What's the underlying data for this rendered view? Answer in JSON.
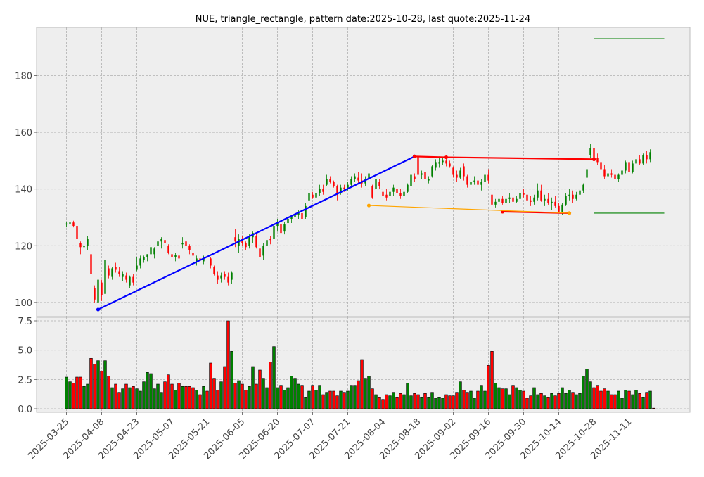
{
  "chart_data": {
    "type": "candlestick",
    "title": "NUE, triangle_rectangle, pattern date:2025-10-28, last quote:2025-11-24",
    "x_tick_labels": [
      "2025-03-25",
      "2025-04-08",
      "2025-04-23",
      "2025-05-07",
      "2025-05-21",
      "2025-06-05",
      "2025-06-20",
      "2025-07-07",
      "2025-07-21",
      "2025-08-04",
      "2025-08-18",
      "2025-09-02",
      "2025-09-16",
      "2025-09-30",
      "2025-10-14",
      "2025-10-28",
      "2025-11-11"
    ],
    "x_tick_index": [
      0,
      10,
      20,
      30,
      40,
      50,
      60,
      70,
      80,
      90,
      100,
      110,
      120,
      130,
      140,
      150,
      160
    ],
    "price_panel": {
      "yticks": [
        100,
        120,
        140,
        160,
        180
      ],
      "ylim": [
        95,
        197
      ],
      "grid": true
    },
    "volume_panel": {
      "yticks": [
        0.0,
        2.5,
        5.0,
        7.5
      ],
      "ytick_labels": [
        "0.0",
        "2.5",
        "5.0",
        "7.5"
      ],
      "ylim": [
        -0.3,
        7.8
      ],
      "grid": true
    },
    "candles": [
      [
        0,
        127.5,
        128.5,
        126.5,
        127.8
      ],
      [
        1,
        127.8,
        129.0,
        126.8,
        128.2
      ],
      [
        2,
        128.2,
        128.8,
        126.5,
        127.0
      ],
      [
        3,
        127.0,
        127.5,
        122.0,
        122.5
      ],
      [
        4,
        121.0,
        121.5,
        117.0,
        119.5
      ],
      [
        5,
        119.5,
        120.5,
        118.0,
        120.0
      ],
      [
        6,
        120.0,
        123.5,
        118.5,
        122.5
      ],
      [
        7,
        117.0,
        117.5,
        109.0,
        110.0
      ],
      [
        8,
        105.0,
        106.0,
        100.0,
        101.0
      ],
      [
        9,
        100.0,
        110.0,
        97.0,
        108.0
      ],
      [
        10,
        107.0,
        108.0,
        100.5,
        102.5
      ],
      [
        11,
        103.0,
        116.0,
        102.0,
        115.0
      ],
      [
        12,
        112.0,
        113.0,
        108.5,
        109.5
      ],
      [
        13,
        109.0,
        112.5,
        108.0,
        112.0
      ],
      [
        14,
        112.5,
        114.0,
        110.5,
        111.5
      ],
      [
        15,
        111.0,
        112.5,
        109.0,
        110.0
      ],
      [
        16,
        109.0,
        111.0,
        107.5,
        110.0
      ],
      [
        17,
        109.5,
        110.5,
        107.0,
        108.0
      ],
      [
        18,
        106.0,
        109.5,
        105.0,
        109.0
      ],
      [
        19,
        109.0,
        110.0,
        106.0,
        107.0
      ],
      [
        20,
        111.5,
        116.0,
        111.0,
        113.0
      ],
      [
        21,
        113.0,
        116.5,
        112.0,
        115.5
      ],
      [
        22,
        115.0,
        116.5,
        114.0,
        116.0
      ],
      [
        23,
        116.0,
        117.0,
        114.5,
        117.0
      ],
      [
        24,
        117.0,
        120.0,
        115.5,
        119.5
      ],
      [
        25,
        117.0,
        119.5,
        115.5,
        119.0
      ],
      [
        26,
        120.0,
        123.5,
        119.0,
        121.5
      ],
      [
        27,
        121.5,
        123.0,
        119.0,
        122.5
      ],
      [
        28,
        122.0,
        122.5,
        120.5,
        121.0
      ],
      [
        29,
        120.0,
        120.5,
        117.0,
        117.5
      ],
      [
        30,
        117.0,
        117.5,
        113.5,
        116.0
      ],
      [
        31,
        116.0,
        117.5,
        114.5,
        116.8
      ],
      [
        32,
        116.5,
        117.0,
        114.0,
        115.5
      ],
      [
        33,
        120.5,
        123.0,
        119.0,
        121.0
      ],
      [
        34,
        121.5,
        122.5,
        119.0,
        120.0
      ],
      [
        35,
        120.0,
        120.5,
        117.0,
        118.5
      ],
      [
        36,
        117.5,
        118.0,
        115.5,
        116.5
      ],
      [
        37,
        114.5,
        116.5,
        113.0,
        115.5
      ],
      [
        38,
        115.5,
        116.5,
        114.5,
        115.0
      ],
      [
        39,
        114.5,
        116.5,
        113.5,
        115.5
      ],
      [
        40,
        116.0,
        117.0,
        114.5,
        115.8
      ],
      [
        41,
        115.5,
        116.0,
        112.0,
        113.0
      ],
      [
        42,
        112.5,
        113.0,
        109.5,
        110.0
      ],
      [
        43,
        109.5,
        111.0,
        106.5,
        108.0
      ],
      [
        44,
        108.5,
        110.5,
        107.0,
        109.5
      ],
      [
        45,
        110.0,
        111.0,
        108.0,
        109.0
      ],
      [
        46,
        109.0,
        110.5,
        106.0,
        107.0
      ],
      [
        47,
        108.0,
        111.0,
        106.5,
        110.5
      ],
      [
        48,
        123.0,
        126.0,
        119.5,
        121.5
      ],
      [
        49,
        120.0,
        124.0,
        117.5,
        122.5
      ],
      [
        50,
        122.0,
        123.5,
        120.0,
        121.0
      ],
      [
        51,
        121.0,
        121.5,
        118.5,
        119.5
      ],
      [
        52,
        120.0,
        124.0,
        119.0,
        123.0
      ],
      [
        53,
        123.0,
        125.0,
        121.0,
        124.5
      ],
      [
        54,
        123.5,
        124.5,
        119.0,
        119.5
      ],
      [
        55,
        119.0,
        120.5,
        115.0,
        116.0
      ],
      [
        56,
        116.5,
        121.0,
        115.0,
        120.0
      ],
      [
        57,
        120.0,
        123.0,
        118.5,
        122.0
      ],
      [
        58,
        122.5,
        123.5,
        120.5,
        122.0
      ],
      [
        59,
        122.5,
        128.0,
        121.5,
        127.0
      ],
      [
        60,
        127.0,
        129.5,
        125.0,
        128.0
      ],
      [
        61,
        127.5,
        128.5,
        123.5,
        124.5
      ],
      [
        62,
        125.0,
        128.5,
        124.0,
        127.5
      ],
      [
        63,
        128.0,
        130.0,
        127.0,
        129.5
      ],
      [
        64,
        129.5,
        131.0,
        128.0,
        130.5
      ],
      [
        65,
        130.0,
        131.5,
        128.5,
        131.0
      ],
      [
        66,
        131.0,
        132.5,
        129.5,
        131.5
      ],
      [
        67,
        131.5,
        133.0,
        128.5,
        129.5
      ],
      [
        68,
        130.0,
        135.0,
        129.5,
        134.0
      ],
      [
        69,
        136.0,
        139.5,
        135.5,
        138.5
      ],
      [
        70,
        138.0,
        139.0,
        136.5,
        137.0
      ],
      [
        71,
        137.0,
        139.5,
        136.0,
        138.5
      ],
      [
        72,
        138.5,
        141.5,
        137.5,
        140.0
      ],
      [
        73,
        140.0,
        141.5,
        138.0,
        139.0
      ],
      [
        74,
        141.5,
        145.0,
        141.0,
        143.5
      ],
      [
        75,
        143.5,
        144.5,
        142.0,
        142.5
      ],
      [
        76,
        142.5,
        143.0,
        140.5,
        141.0
      ],
      [
        77,
        141.0,
        141.5,
        136.0,
        138.0
      ],
      [
        78,
        138.5,
        141.5,
        138.0,
        140.5
      ],
      [
        79,
        140.5,
        141.5,
        139.0,
        140.0
      ],
      [
        80,
        140.5,
        142.5,
        139.5,
        141.5
      ],
      [
        81,
        141.5,
        144.5,
        141.0,
        143.5
      ],
      [
        82,
        143.5,
        145.5,
        142.5,
        144.5
      ],
      [
        83,
        144.0,
        146.0,
        142.0,
        143.0
      ],
      [
        84,
        143.0,
        145.5,
        140.5,
        142.0
      ],
      [
        85,
        142.0,
        144.5,
        141.0,
        143.5
      ],
      [
        86,
        143.5,
        147.0,
        142.5,
        145.5
      ],
      [
        87,
        141.0,
        141.5,
        136.5,
        137.0
      ],
      [
        88,
        140.0,
        145.0,
        139.0,
        143.5
      ],
      [
        89,
        142.5,
        143.5,
        140.0,
        141.0
      ],
      [
        90,
        139.0,
        140.0,
        136.5,
        137.5
      ],
      [
        91,
        138.0,
        140.0,
        136.0,
        137.0
      ],
      [
        92,
        137.5,
        139.5,
        136.5,
        139.0
      ],
      [
        93,
        139.0,
        141.5,
        137.5,
        140.5
      ],
      [
        94,
        140.0,
        141.0,
        137.5,
        138.5
      ],
      [
        95,
        138.5,
        140.0,
        136.5,
        137.5
      ],
      [
        96,
        137.5,
        139.5,
        136.0,
        139.0
      ],
      [
        97,
        139.0,
        142.0,
        138.5,
        141.5
      ],
      [
        98,
        141.0,
        146.0,
        140.5,
        145.0
      ],
      [
        99,
        144.5,
        145.5,
        142.5,
        143.5
      ],
      [
        100,
        151.5,
        152.0,
        143.5,
        145.0
      ],
      [
        101,
        145.0,
        146.5,
        143.5,
        145.5
      ],
      [
        102,
        146.0,
        147.0,
        142.5,
        143.5
      ],
      [
        103,
        143.0,
        144.5,
        142.0,
        143.5
      ],
      [
        104,
        144.5,
        148.5,
        144.0,
        148.0
      ],
      [
        105,
        147.5,
        150.5,
        146.5,
        149.5
      ],
      [
        106,
        149.0,
        151.5,
        147.5,
        149.5
      ],
      [
        107,
        149.5,
        151.0,
        148.5,
        150.0
      ],
      [
        108,
        150.0,
        151.5,
        148.0,
        149.0
      ],
      [
        109,
        149.0,
        150.0,
        147.5,
        148.0
      ],
      [
        110,
        147.5,
        148.0,
        144.0,
        145.0
      ],
      [
        111,
        145.0,
        146.5,
        142.5,
        144.0
      ],
      [
        112,
        144.0,
        147.5,
        143.5,
        146.5
      ],
      [
        113,
        148.0,
        149.0,
        143.0,
        144.5
      ],
      [
        114,
        144.5,
        145.0,
        140.5,
        141.5
      ],
      [
        115,
        141.5,
        143.5,
        140.5,
        142.5
      ],
      [
        116,
        142.5,
        144.5,
        141.5,
        143.0
      ],
      [
        117,
        143.0,
        144.0,
        141.0,
        141.5
      ],
      [
        118,
        141.5,
        143.5,
        139.5,
        142.5
      ],
      [
        119,
        142.5,
        146.0,
        142.0,
        145.0
      ],
      [
        120,
        145.0,
        147.0,
        142.0,
        143.0
      ],
      [
        121,
        138.0,
        139.5,
        133.5,
        134.5
      ],
      [
        122,
        134.5,
        136.5,
        133.5,
        135.5
      ],
      [
        123,
        135.5,
        138.5,
        134.0,
        136.5
      ],
      [
        124,
        136.5,
        137.5,
        134.5,
        135.0
      ],
      [
        125,
        135.0,
        137.5,
        134.5,
        136.5
      ],
      [
        126,
        136.5,
        138.5,
        135.0,
        137.0
      ],
      [
        127,
        137.0,
        138.5,
        134.5,
        135.5
      ],
      [
        128,
        135.5,
        137.5,
        135.0,
        136.5
      ],
      [
        129,
        136.5,
        139.5,
        135.5,
        138.5
      ],
      [
        130,
        138.5,
        140.0,
        137.0,
        138.0
      ],
      [
        131,
        138.0,
        139.5,
        135.5,
        136.0
      ],
      [
        132,
        136.0,
        137.5,
        134.0,
        135.5
      ],
      [
        133,
        135.5,
        138.0,
        134.5,
        137.0
      ],
      [
        134,
        137.0,
        142.0,
        136.0,
        139.5
      ],
      [
        135,
        139.5,
        141.5,
        135.5,
        136.0
      ],
      [
        136,
        136.0,
        138.0,
        134.0,
        136.5
      ],
      [
        137,
        136.5,
        138.5,
        134.5,
        135.0
      ],
      [
        138,
        135.0,
        137.0,
        132.5,
        135.5
      ],
      [
        139,
        135.5,
        137.5,
        133.5,
        134.0
      ],
      [
        140,
        134.0,
        135.0,
        131.5,
        132.0
      ],
      [
        141,
        132.0,
        135.0,
        131.0,
        134.5
      ],
      [
        142,
        134.5,
        138.5,
        134.0,
        137.5
      ],
      [
        143,
        137.5,
        140.0,
        136.0,
        138.0
      ],
      [
        144,
        138.0,
        139.5,
        135.0,
        136.5
      ],
      [
        145,
        136.5,
        139.0,
        136.0,
        138.0
      ],
      [
        146,
        138.0,
        140.0,
        137.0,
        139.5
      ],
      [
        147,
        139.5,
        142.0,
        138.5,
        141.5
      ],
      [
        148,
        144.0,
        148.0,
        143.0,
        147.0
      ],
      [
        149,
        152.0,
        156.0,
        151.0,
        154.5
      ],
      [
        150,
        154.5,
        155.0,
        150.0,
        151.0
      ],
      [
        151,
        151.0,
        152.5,
        148.5,
        149.5
      ],
      [
        152,
        149.5,
        151.0,
        146.0,
        147.0
      ],
      [
        153,
        147.0,
        148.5,
        143.5,
        144.5
      ],
      [
        154,
        144.5,
        146.5,
        143.5,
        145.5
      ],
      [
        155,
        145.5,
        147.0,
        144.0,
        145.0
      ],
      [
        156,
        145.0,
        146.0,
        142.5,
        143.5
      ],
      [
        157,
        143.5,
        145.5,
        142.5,
        145.0
      ],
      [
        158,
        145.0,
        147.5,
        144.5,
        146.5
      ],
      [
        159,
        146.5,
        150.0,
        145.5,
        149.5
      ],
      [
        160,
        149.5,
        151.0,
        145.0,
        146.0
      ],
      [
        161,
        146.0,
        150.0,
        145.5,
        149.0
      ],
      [
        162,
        149.0,
        151.5,
        147.5,
        150.5
      ],
      [
        163,
        150.5,
        152.0,
        148.5,
        149.0
      ],
      [
        164,
        149.0,
        152.5,
        148.5,
        152.0
      ],
      [
        165,
        152.0,
        153.5,
        149.0,
        150.5
      ],
      [
        166,
        150.5,
        154.0,
        149.5,
        153.0
      ]
    ],
    "volume": [
      2.7,
      2.3,
      2.2,
      2.7,
      2.7,
      1.9,
      2.1,
      4.3,
      3.8,
      4.1,
      3.2,
      4.1,
      2.8,
      1.8,
      2.1,
      1.4,
      1.7,
      2.1,
      1.8,
      1.9,
      1.7,
      1.5,
      2.3,
      3.1,
      3.0,
      1.7,
      2.1,
      1.4,
      2.3,
      2.9,
      2.1,
      1.6,
      2.2,
      1.9,
      1.9,
      1.9,
      1.8,
      1.6,
      1.2,
      1.9,
      1.5,
      3.9,
      2.6,
      1.6,
      2.3,
      3.6,
      7.5,
      4.9,
      2.2,
      2.4,
      2.1,
      1.6,
      1.9,
      3.6,
      2.1,
      3.3,
      2.6,
      1.8,
      4.0,
      5.3,
      1.8,
      2.0,
      1.6,
      1.8,
      2.8,
      2.6,
      2.1,
      2.0,
      1.0,
      1.5,
      2.0,
      1.6,
      2.0,
      1.2,
      1.4,
      1.5,
      1.5,
      1.1,
      1.5,
      1.4,
      1.5,
      2.0,
      2.0,
      2.4,
      4.2,
      2.6,
      2.8,
      1.7,
      1.2,
      1.0,
      0.8,
      1.2,
      1.1,
      1.4,
      1.0,
      1.3,
      1.2,
      2.2,
      1.1,
      1.3,
      1.2,
      1.0,
      1.3,
      1.0,
      1.4,
      0.9,
      1.0,
      0.9,
      1.2,
      1.1,
      1.1,
      1.4,
      2.3,
      1.6,
      1.4,
      1.5,
      0.9,
      1.5,
      2.0,
      1.5,
      3.7,
      4.9,
      2.2,
      1.8,
      1.7,
      1.7,
      1.2,
      2.0,
      1.8,
      1.6,
      1.5,
      0.9,
      1.1,
      1.8,
      1.2,
      1.3,
      1.1,
      1.0,
      1.3,
      1.1,
      1.3,
      1.8,
      1.3,
      1.6,
      1.4,
      1.2,
      1.3,
      2.8,
      3.4,
      2.3,
      1.8,
      2.0,
      1.5,
      1.7,
      1.5,
      1.2,
      1.2,
      1.5,
      0.9,
      1.6,
      1.5,
      1.2,
      1.6,
      1.3,
      1.0,
      1.4,
      1.5,
      0.05
    ],
    "overlay_lines": [
      {
        "color": "#0000ff",
        "width": 2.2,
        "points": [
          [
            9,
            97.5
          ],
          [
            99,
            151.5
          ]
        ],
        "markers": true
      },
      {
        "color": "#ff0000",
        "width": 2.2,
        "points": [
          [
            99,
            151.5
          ],
          [
            108,
            151.2
          ],
          [
            150,
            150.5
          ]
        ],
        "markers": true
      },
      {
        "color": "#ff0000",
        "width": 2.2,
        "points": [
          [
            124,
            132.0
          ],
          [
            143,
            131.5
          ]
        ],
        "markers": true
      },
      {
        "color": "#ffa500",
        "width": 1.2,
        "points": [
          [
            86,
            134.2
          ],
          [
            143,
            131.5
          ]
        ],
        "markers": true
      },
      {
        "color": "#008000",
        "width": 1.2,
        "points": [
          [
            150,
            193.0
          ],
          [
            170,
            193.0
          ]
        ],
        "markers": false
      },
      {
        "color": "#008000",
        "width": 1.2,
        "points": [
          [
            150,
            131.5
          ],
          [
            170,
            131.5
          ]
        ],
        "markers": false
      }
    ],
    "colors": {
      "up": "#008000",
      "down": "#ff0000",
      "grid": "#b0b0b0",
      "panel_bg": "#eeeeee",
      "axis": "#bcbcbc"
    }
  }
}
